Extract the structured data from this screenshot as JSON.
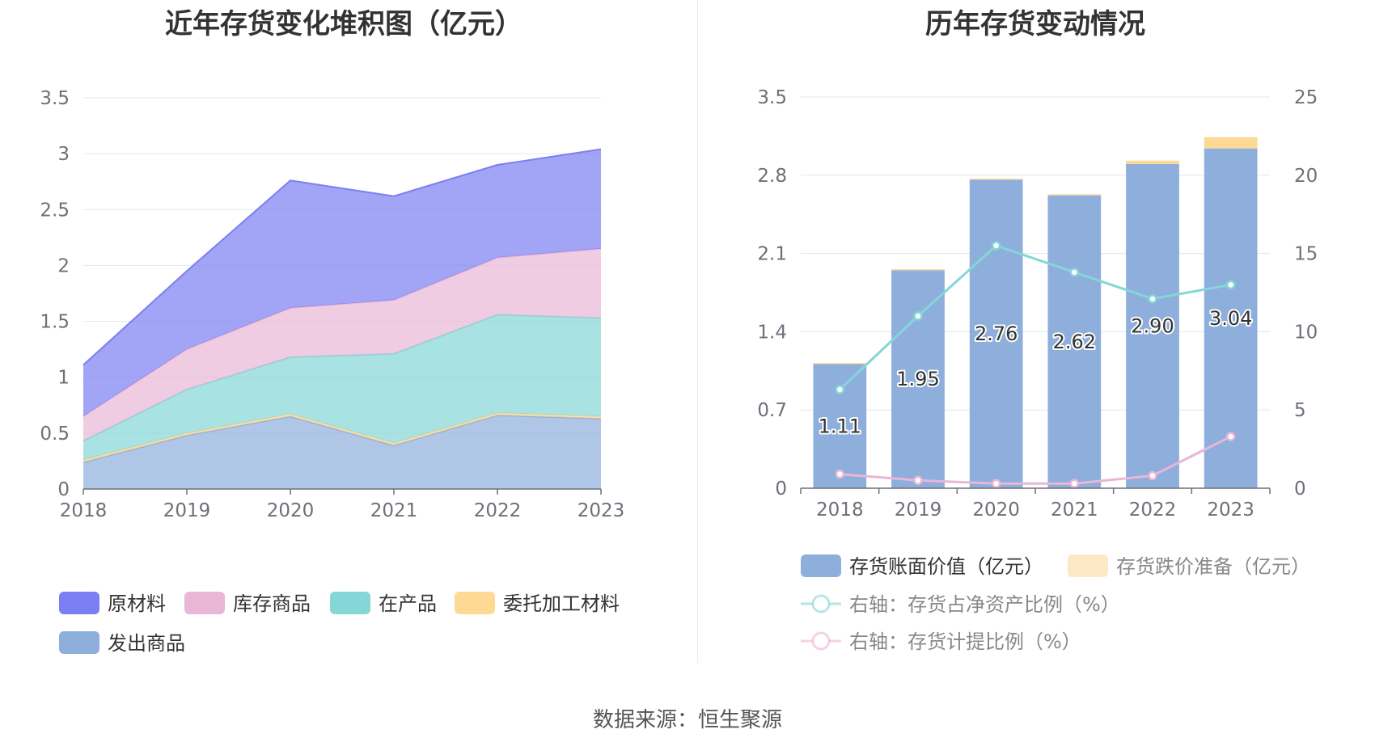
{
  "left_title": "近年存货变化堆积图（亿元）",
  "right_title": "历年存货变动情况",
  "source": "数据来源：恒生聚源",
  "chart_data": [
    {
      "type": "area",
      "stacked": true,
      "title": "近年存货变化堆积图（亿元）",
      "x": [
        "2018",
        "2019",
        "2020",
        "2021",
        "2022",
        "2023"
      ],
      "ylim": [
        0,
        3.5
      ],
      "yticks": [
        "0",
        "0.5",
        "1",
        "1.5",
        "2",
        "2.5",
        "3",
        "3.5"
      ],
      "grid": true,
      "legend_position": "bottom",
      "series": [
        {
          "name": "发出商品",
          "color": "#8eaedc",
          "values": [
            0.24,
            0.48,
            0.65,
            0.39,
            0.66,
            0.63
          ]
        },
        {
          "name": "委托加工材料",
          "color": "#fdd995",
          "values": [
            0.02,
            0.02,
            0.02,
            0.02,
            0.02,
            0.02
          ]
        },
        {
          "name": "在产品",
          "color": "#85d6d6",
          "values": [
            0.17,
            0.39,
            0.51,
            0.8,
            0.88,
            0.88
          ]
        },
        {
          "name": "库存商品",
          "color": "#e9b6d6",
          "values": [
            0.22,
            0.36,
            0.44,
            0.48,
            0.51,
            0.62
          ]
        },
        {
          "name": "原材料",
          "color": "#7b7ff1",
          "values": [
            0.46,
            0.7,
            1.14,
            0.93,
            0.83,
            0.89
          ]
        }
      ],
      "legend_order": [
        "原材料",
        "库存商品",
        "在产品",
        "委托加工材料",
        "发出商品"
      ]
    },
    {
      "type": "bar",
      "title": "历年存货变动情况",
      "x": [
        "2018",
        "2019",
        "2020",
        "2021",
        "2022",
        "2023"
      ],
      "ylim": [
        0,
        3.5
      ],
      "yticks": [
        "0",
        "0.7",
        "1.4",
        "2.1",
        "2.8",
        "3.5"
      ],
      "y2lim": [
        0,
        25
      ],
      "y2ticks": [
        "0",
        "5",
        "10",
        "15",
        "20",
        "25"
      ],
      "grid": true,
      "legend_position": "bottom",
      "series": [
        {
          "name": "存货账面价值（亿元）",
          "type": "bar",
          "color": "#8eaedc",
          "values": [
            1.11,
            1.95,
            2.76,
            2.62,
            2.9,
            3.04
          ],
          "labels": [
            "1.11",
            "1.95",
            "2.76",
            "2.62",
            "2.90",
            "3.04"
          ]
        },
        {
          "name": "存货跌价准备（亿元）",
          "type": "bar",
          "color": "#fdd995",
          "values": [
            0.01,
            0.01,
            0.01,
            0.01,
            0.03,
            0.1
          ]
        },
        {
          "name": "右轴：存货占净资产比例（%）",
          "type": "line",
          "axis": "right",
          "color": "#85d6d6",
          "values": [
            6.3,
            11.0,
            15.5,
            13.8,
            12.1,
            13.0
          ]
        },
        {
          "name": "右轴：存货计提比例（%）",
          "type": "line",
          "axis": "right",
          "color": "#e9b6d6",
          "values": [
            0.9,
            0.5,
            0.3,
            0.3,
            0.8,
            3.3
          ]
        }
      ]
    }
  ]
}
